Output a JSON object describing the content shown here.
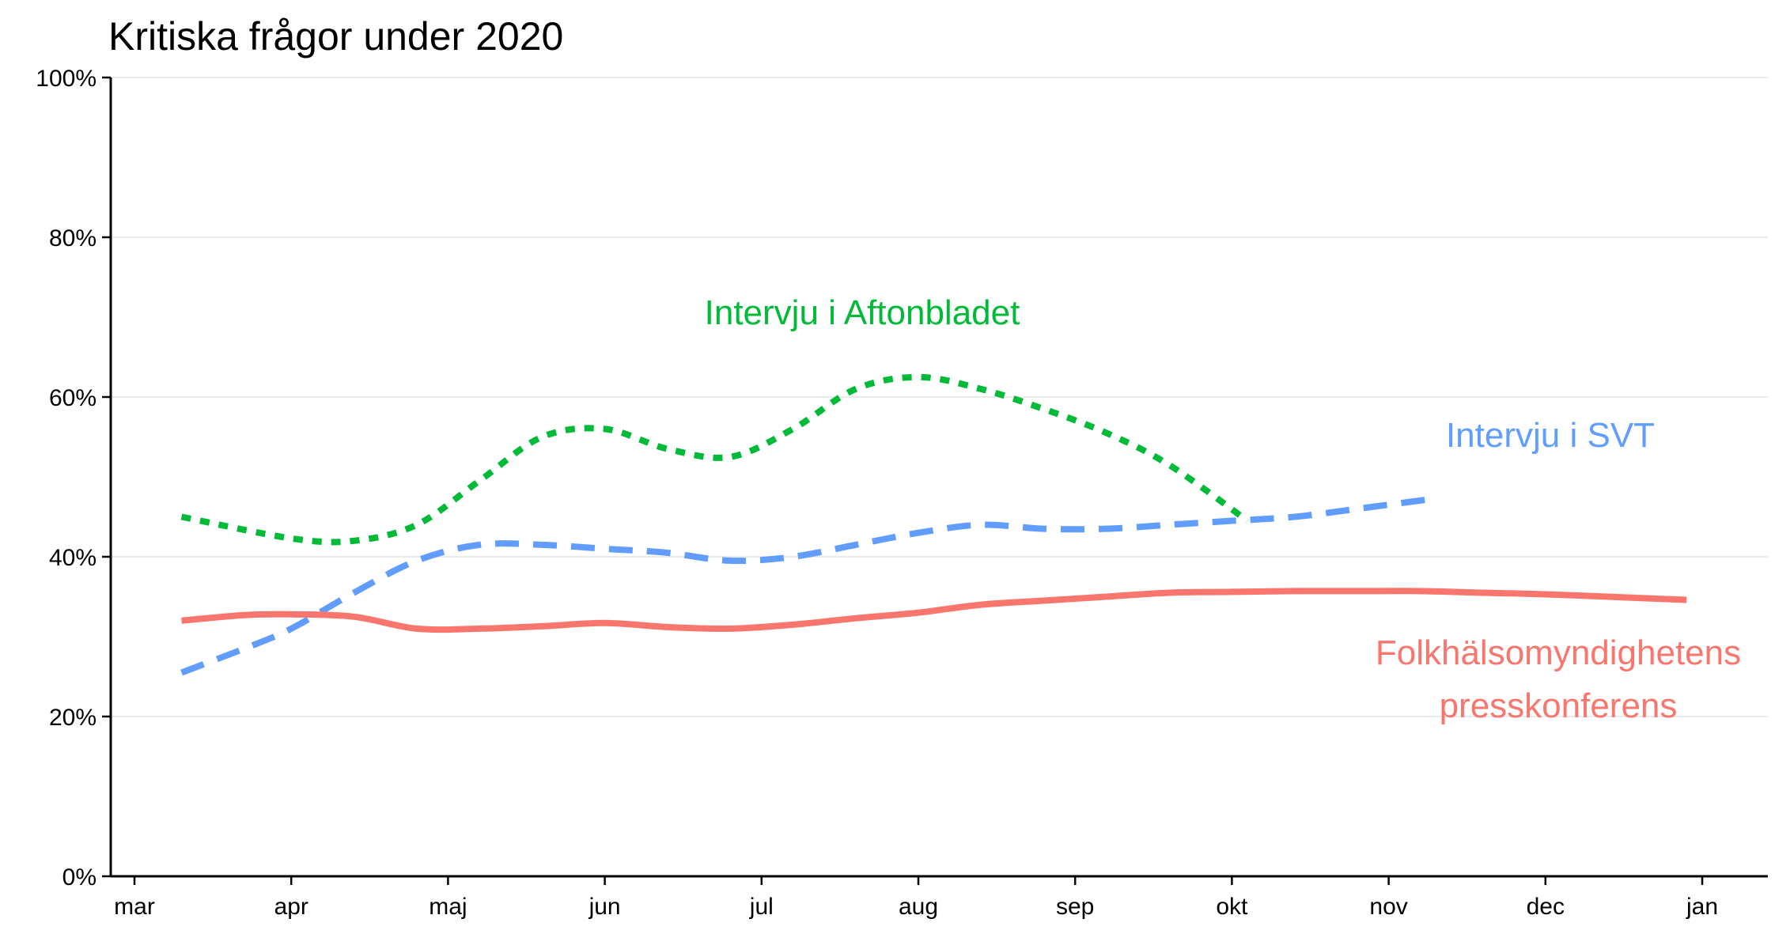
{
  "chart_data": {
    "type": "line",
    "title": "Kritiska frågor under 2020",
    "xlabel": "",
    "ylabel": "",
    "x_ticks": [
      "mar",
      "apr",
      "maj",
      "jun",
      "jul",
      "aug",
      "sep",
      "okt",
      "nov",
      "dec",
      "jan"
    ],
    "y_ticks": [
      "0%",
      "20%",
      "40%",
      "60%",
      "80%",
      "100%"
    ],
    "ylim": [
      0,
      100
    ],
    "xlim": [
      -0.15,
      10.3
    ],
    "grid": "horizontal",
    "legend": "none (direct labels)",
    "series": [
      {
        "name": "Intervju i Aftonbladet",
        "color": "#00BA38",
        "dash": "dotted",
        "x": [
          0.3,
          1.0,
          1.4,
          1.8,
          2.2,
          2.6,
          3.0,
          3.4,
          3.8,
          4.2,
          4.6,
          5.0,
          5.4,
          5.8,
          6.2,
          6.6,
          7.1
        ],
        "y": [
          45.0,
          42.3,
          42.0,
          44.0,
          49.5,
          55.0,
          56.0,
          53.5,
          52.5,
          56.0,
          61.0,
          62.5,
          61.0,
          58.5,
          55.5,
          51.5,
          44.5
        ]
      },
      {
        "name": "Intervju i SVT",
        "color": "#619CFF",
        "dash": "dashed",
        "x": [
          0.3,
          0.7,
          1.0,
          1.4,
          1.8,
          2.2,
          2.6,
          3.0,
          3.4,
          3.8,
          4.2,
          4.6,
          5.0,
          5.4,
          5.8,
          6.2,
          6.6,
          7.0,
          7.4,
          7.8,
          8.3
        ],
        "y": [
          25.5,
          28.5,
          31.0,
          35.5,
          39.5,
          41.5,
          41.5,
          41.0,
          40.5,
          39.5,
          40.0,
          41.5,
          43.0,
          44.0,
          43.5,
          43.5,
          44.0,
          44.5,
          45.0,
          46.0,
          47.3
        ]
      },
      {
        "name": "Folkhälsomyndighetens presskonferens",
        "color": "#F8766D",
        "dash": "solid",
        "x": [
          0.3,
          0.7,
          1.0,
          1.4,
          1.8,
          2.2,
          2.6,
          3.0,
          3.4,
          3.8,
          4.2,
          4.6,
          5.0,
          5.4,
          5.8,
          6.2,
          6.6,
          7.0,
          7.4,
          7.8,
          8.2,
          8.6,
          9.0,
          9.4,
          9.9
        ],
        "y": [
          32.0,
          32.7,
          32.8,
          32.5,
          31.0,
          31.0,
          31.3,
          31.7,
          31.2,
          31.0,
          31.5,
          32.3,
          33.0,
          34.0,
          34.5,
          35.0,
          35.5,
          35.6,
          35.7,
          35.7,
          35.7,
          35.5,
          35.3,
          35.0,
          34.6
        ]
      }
    ],
    "labels": {
      "aftonbladet": "Intervju i Aftonbladet",
      "svt": "Intervju i SVT",
      "fhm_line1": "Folkhälsomyndighetens",
      "fhm_line2": "presskonferens"
    }
  }
}
